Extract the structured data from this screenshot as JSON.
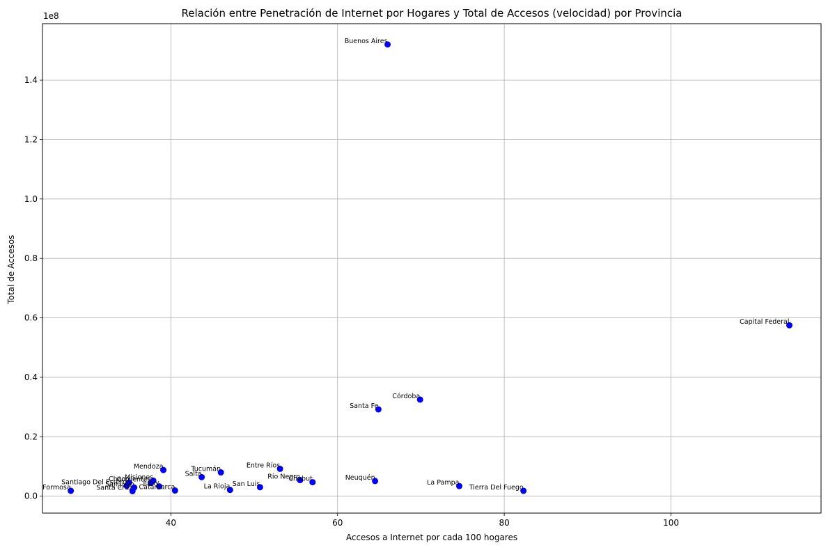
{
  "chart_data": {
    "type": "scatter",
    "title": "Relación entre Penetración de Internet por Hogares y Total de Accesos (velocidad) por Provincia",
    "xlabel": "Accesos a Internet por cada 100 hogares",
    "ylabel": "Total de Accesos",
    "y_offset_label": "1e8",
    "xlim": [
      24.6,
      118.0
    ],
    "ylim": [
      -5700000,
      159000000
    ],
    "x_ticks": [
      40,
      60,
      80,
      100
    ],
    "x_tick_labels": [
      "40",
      "60",
      "80",
      "100"
    ],
    "y_ticks": [
      0,
      20000000,
      40000000,
      60000000,
      80000000,
      100000000,
      120000000,
      140000000
    ],
    "y_tick_labels": [
      "0.0",
      "0.2",
      "0.4",
      "0.6",
      "0.8",
      "1.0",
      "1.2",
      "1.4"
    ],
    "grid": true,
    "marker_color": "#0000ff",
    "points": [
      {
        "label": "Buenos Aires",
        "x": 66.0,
        "y": 152000000
      },
      {
        "label": "Capital Federal",
        "x": 114.2,
        "y": 57500000
      },
      {
        "label": "Córdoba",
        "x": 69.9,
        "y": 32500000
      },
      {
        "label": "Santa Fe",
        "x": 64.9,
        "y": 29200000
      },
      {
        "label": "Entre Ríos",
        "x": 53.1,
        "y": 9200000
      },
      {
        "label": "Mendoza",
        "x": 39.1,
        "y": 8800000
      },
      {
        "label": "Tucumán",
        "x": 46.0,
        "y": 8000000
      },
      {
        "label": "Salta",
        "x": 43.7,
        "y": 6400000
      },
      {
        "label": "Río Negro",
        "x": 55.5,
        "y": 5400000
      },
      {
        "label": "Chubut",
        "x": 57.0,
        "y": 4700000
      },
      {
        "label": "Neuquén",
        "x": 64.5,
        "y": 5100000
      },
      {
        "label": "La Pampa",
        "x": 74.6,
        "y": 3400000
      },
      {
        "label": "Tierra Del Fuego",
        "x": 82.3,
        "y": 1800000
      },
      {
        "label": "San Luis",
        "x": 50.7,
        "y": 3000000
      },
      {
        "label": "La Rioja",
        "x": 47.1,
        "y": 2100000
      },
      {
        "label": "Catamarca",
        "x": 40.5,
        "y": 1900000
      },
      {
        "label": "Santa Cruz",
        "x": 35.4,
        "y": 1700000
      },
      {
        "label": "Jujuy",
        "x": 38.6,
        "y": 3300000
      },
      {
        "label": "San Juan",
        "x": 35.6,
        "y": 2900000
      },
      {
        "label": "Misiones",
        "x": 37.9,
        "y": 5200000
      },
      {
        "label": "Corrientes",
        "x": 37.6,
        "y": 4500000
      },
      {
        "label": "Chaco",
        "x": 35.0,
        "y": 4600000
      },
      {
        "label": "Santiago Del Estero",
        "x": 34.7,
        "y": 3500000
      },
      {
        "label": "Formosa",
        "x": 28.0,
        "y": 1800000
      }
    ]
  }
}
